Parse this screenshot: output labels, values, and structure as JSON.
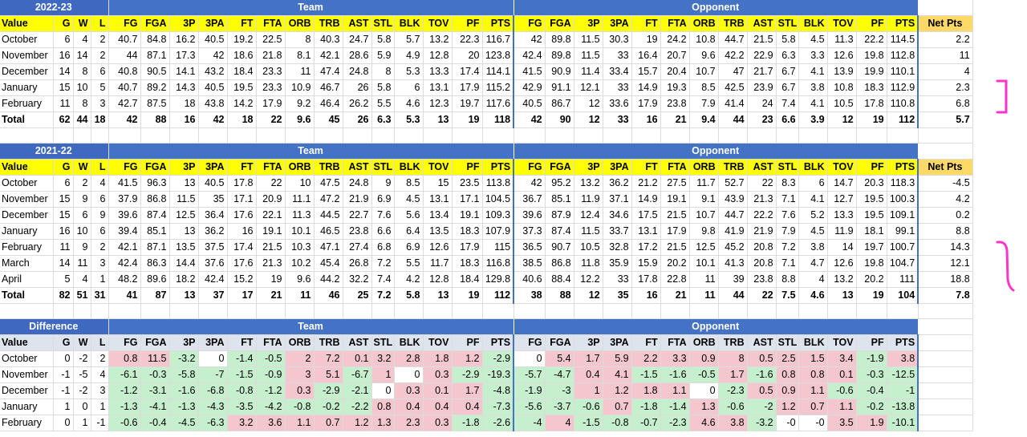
{
  "sections": [
    {
      "title": "2022-23",
      "team_band": "Team",
      "opp_band": "Opponent",
      "headers": [
        "Value",
        "G",
        "W",
        "L",
        "FG",
        "FGA",
        "3P",
        "3PA",
        "FT",
        "FTA",
        "ORB",
        "TRB",
        "AST",
        "STL",
        "BLK",
        "TOV",
        "PF",
        "PTS",
        "FG",
        "FGA",
        "3P",
        "3PA",
        "FT",
        "FTA",
        "ORB",
        "TRB",
        "AST",
        "STL",
        "BLK",
        "TOV",
        "PF",
        "PTS"
      ],
      "net_header": "Net Pts",
      "rows": [
        [
          "October",
          "6",
          "4",
          "2",
          "40.7",
          "84.8",
          "16.2",
          "40.5",
          "19.2",
          "22.5",
          "8",
          "40.3",
          "24.7",
          "5.8",
          "5.7",
          "13.2",
          "22.3",
          "116.7",
          "42",
          "89.8",
          "11.5",
          "30.3",
          "19",
          "24.2",
          "10.8",
          "44.7",
          "21.5",
          "5.8",
          "4.5",
          "11.3",
          "22.2",
          "114.5",
          "2.2"
        ],
        [
          "November",
          "16",
          "14",
          "2",
          "44",
          "87.1",
          "17.3",
          "42",
          "18.6",
          "21.8",
          "8.1",
          "42.1",
          "28.6",
          "5.9",
          "4.9",
          "12.8",
          "20",
          "123.8",
          "42.4",
          "89.8",
          "11.5",
          "33",
          "16.4",
          "20.7",
          "9.6",
          "42.2",
          "22.9",
          "6.3",
          "3.3",
          "12.6",
          "19.8",
          "112.8",
          "11"
        ],
        [
          "December",
          "14",
          "8",
          "6",
          "40.8",
          "90.5",
          "14.1",
          "43.2",
          "18.4",
          "23.3",
          "11",
          "47.4",
          "24.8",
          "8",
          "5.3",
          "13.3",
          "17.4",
          "114.1",
          "41.5",
          "90.9",
          "11.4",
          "33.4",
          "15.7",
          "20.4",
          "10.7",
          "47",
          "21.7",
          "6.7",
          "4.1",
          "13.9",
          "19.9",
          "110.1",
          "4"
        ],
        [
          "January",
          "15",
          "10",
          "5",
          "40.7",
          "89.2",
          "14.3",
          "40.5",
          "19.5",
          "23.3",
          "10.9",
          "46.7",
          "26",
          "5.8",
          "6",
          "13.1",
          "17.9",
          "115.2",
          "42.9",
          "91.1",
          "12.1",
          "33",
          "14.9",
          "19.3",
          "8.5",
          "42.5",
          "23.9",
          "6.7",
          "3.8",
          "10.8",
          "18.3",
          "112.9",
          "2.3"
        ],
        [
          "February",
          "11",
          "8",
          "3",
          "42.7",
          "87.5",
          "18",
          "43.8",
          "14.2",
          "17.9",
          "9.2",
          "46.4",
          "26.2",
          "5.5",
          "4.6",
          "12.3",
          "19.7",
          "117.6",
          "40.5",
          "86.7",
          "12",
          "33.6",
          "17.9",
          "23.8",
          "7.9",
          "41.4",
          "24",
          "7.4",
          "4.1",
          "10.5",
          "17.8",
          "110.8",
          "6.8"
        ],
        [
          "Total",
          "62",
          "44",
          "18",
          "42",
          "88",
          "16",
          "42",
          "18",
          "22",
          "9.6",
          "45",
          "26",
          "6.3",
          "5.3",
          "13",
          "19",
          "118",
          "42",
          "90",
          "12",
          "33",
          "16",
          "21",
          "9.4",
          "44",
          "23",
          "6.6",
          "3.9",
          "12",
          "19",
          "112",
          "5.7"
        ]
      ]
    },
    {
      "title": "2021-22",
      "team_band": "Team",
      "opp_band": "Opponent",
      "headers": [
        "Value",
        "G",
        "W",
        "L",
        "FG",
        "FGA",
        "3P",
        "3PA",
        "FT",
        "FTA",
        "ORB",
        "TRB",
        "AST",
        "STL",
        "BLK",
        "TOV",
        "PF",
        "PTS",
        "FG",
        "FGA",
        "3P",
        "3PA",
        "FT",
        "FTA",
        "ORB",
        "TRB",
        "AST",
        "STL",
        "BLK",
        "TOV",
        "PF",
        "PTS"
      ],
      "net_header": "Net Pts",
      "rows": [
        [
          "October",
          "6",
          "2",
          "4",
          "41.5",
          "96.3",
          "13",
          "40.5",
          "17.8",
          "22",
          "10",
          "47.5",
          "24.8",
          "9",
          "8.5",
          "15",
          "23.5",
          "113.8",
          "42",
          "95.2",
          "13.2",
          "36.2",
          "21.2",
          "27.5",
          "11.7",
          "52.7",
          "22",
          "8.3",
          "6",
          "14.7",
          "20.3",
          "118.3",
          "-4.5"
        ],
        [
          "November",
          "15",
          "9",
          "6",
          "37.9",
          "86.8",
          "11.5",
          "35",
          "17.1",
          "20.9",
          "11.1",
          "47.2",
          "21.9",
          "6.9",
          "4.5",
          "13.1",
          "17.1",
          "104.5",
          "36.7",
          "85.1",
          "11.9",
          "37.1",
          "14.9",
          "19.1",
          "9.1",
          "43.9",
          "21.3",
          "7.1",
          "4.1",
          "12.7",
          "19.5",
          "100.3",
          "4.2"
        ],
        [
          "December",
          "15",
          "6",
          "9",
          "39.6",
          "87.4",
          "12.5",
          "36.4",
          "17.6",
          "22.1",
          "11.3",
          "44.5",
          "22.7",
          "7.6",
          "5.6",
          "13.4",
          "19.1",
          "109.3",
          "39.6",
          "87.9",
          "12.4",
          "34.6",
          "17.5",
          "21.5",
          "10.7",
          "44.7",
          "22.2",
          "7.6",
          "5.2",
          "13.3",
          "19.5",
          "109.1",
          "0.2"
        ],
        [
          "January",
          "16",
          "10",
          "6",
          "39.4",
          "85.1",
          "13",
          "36.2",
          "16",
          "19.1",
          "10.1",
          "46.5",
          "23.8",
          "6.6",
          "6.4",
          "13.5",
          "18.3",
          "107.9",
          "37.3",
          "87.4",
          "11.5",
          "33.7",
          "13.1",
          "17.9",
          "9.8",
          "41.9",
          "21.9",
          "7.9",
          "4.5",
          "11.9",
          "18.1",
          "99.1",
          "8.8"
        ],
        [
          "February",
          "11",
          "9",
          "2",
          "42.1",
          "87.1",
          "13.5",
          "37.5",
          "17.4",
          "21.5",
          "10.3",
          "47.1",
          "27.4",
          "6.8",
          "6.9",
          "12.6",
          "17.9",
          "115",
          "36.5",
          "90.7",
          "10.5",
          "32.8",
          "17.2",
          "21.5",
          "12.5",
          "45.2",
          "20.8",
          "7.2",
          "3.8",
          "14",
          "19.7",
          "100.7",
          "14.3"
        ],
        [
          "March",
          "14",
          "11",
          "3",
          "42.4",
          "86.3",
          "14.4",
          "37.6",
          "17.6",
          "21.3",
          "10.2",
          "45.4",
          "26.8",
          "7.2",
          "5.5",
          "11.7",
          "18.3",
          "116.8",
          "38.5",
          "86.8",
          "11.8",
          "35.9",
          "15.9",
          "20.2",
          "10.1",
          "41.3",
          "20.8",
          "7.1",
          "4.7",
          "12.6",
          "19.8",
          "104.7",
          "12.1"
        ],
        [
          "April",
          "5",
          "4",
          "1",
          "48.2",
          "89.6",
          "18.2",
          "42.4",
          "15.2",
          "19",
          "9.6",
          "44.2",
          "32.2",
          "7.4",
          "4.2",
          "12.8",
          "18.4",
          "129.8",
          "40.6",
          "88.4",
          "12.2",
          "33",
          "17.8",
          "22.8",
          "11",
          "39",
          "23.8",
          "8.8",
          "4",
          "13.2",
          "20.2",
          "111",
          "18.8"
        ],
        [
          "Total",
          "82",
          "51",
          "31",
          "41",
          "87",
          "13",
          "37",
          "17",
          "21",
          "11",
          "46",
          "25",
          "7.2",
          "5.8",
          "13",
          "19",
          "112",
          "38",
          "88",
          "12",
          "35",
          "16",
          "21",
          "11",
          "44",
          "22",
          "7.5",
          "4.6",
          "13",
          "19",
          "104",
          "7.8"
        ]
      ]
    },
    {
      "title": "Difference",
      "team_band": "Team",
      "opp_band": "Opponent",
      "headers": [
        "Value",
        "G",
        "W",
        "L",
        "FG",
        "FGA",
        "3P",
        "3PA",
        "FT",
        "FTA",
        "ORB",
        "TRB",
        "AST",
        "STL",
        "BLK",
        "TOV",
        "PF",
        "PTS",
        "FG",
        "FGA",
        "3P",
        "3PA",
        "FT",
        "FTA",
        "ORB",
        "TRB",
        "AST",
        "STL",
        "BLK",
        "TOV",
        "PF",
        "PTS"
      ],
      "rows": [
        [
          "October",
          "0",
          "-2",
          "2",
          "0.8",
          "11.5",
          "-3.2",
          "0",
          "-1.4",
          "-0.5",
          "2",
          "7.2",
          "0.1",
          "3.2",
          "2.8",
          "1.8",
          "1.2",
          "-2.9",
          "0",
          "5.4",
          "1.7",
          "5.9",
          "2.2",
          "3.3",
          "0.9",
          "8",
          "0.5",
          "2.5",
          "1.5",
          "3.4",
          "-1.9",
          "3.8"
        ],
        [
          "November",
          "-1",
          "-5",
          "4",
          "-6.1",
          "-0.3",
          "-5.8",
          "-7",
          "-1.5",
          "-0.9",
          "3",
          "5.1",
          "-6.7",
          "1",
          "0",
          "0.3",
          "-2.9",
          "-19.3",
          "-5.7",
          "-4.7",
          "0.4",
          "4.1",
          "-1.5",
          "-1.6",
          "-0.5",
          "1.7",
          "-1.6",
          "0.8",
          "0.8",
          "0.1",
          "-0.3",
          "-12.5"
        ],
        [
          "December",
          "-1",
          "-2",
          "3",
          "-1.2",
          "-3.1",
          "-1.6",
          "-6.8",
          "-0.8",
          "-1.2",
          "0.3",
          "-2.9",
          "-2.1",
          "0",
          "0.3",
          "0.1",
          "1.7",
          "-4.8",
          "-1.9",
          "-3",
          "1",
          "1.2",
          "1.8",
          "1.1",
          "0",
          "-2.3",
          "0.5",
          "0.9",
          "1.1",
          "-0.6",
          "-0.4",
          "-1"
        ],
        [
          "January",
          "1",
          "0",
          "1",
          "-1.3",
          "-4.1",
          "-1.3",
          "-4.3",
          "-3.5",
          "-4.2",
          "-0.8",
          "-0.2",
          "-2.2",
          "0.8",
          "0.4",
          "0.4",
          "0.4",
          "-7.3",
          "-5.6",
          "-3.7",
          "-0.6",
          "0.7",
          "-1.8",
          "-1.4",
          "1.3",
          "-0.6",
          "-2",
          "1.2",
          "0.7",
          "1.1",
          "-0.2",
          "-13.8"
        ],
        [
          "February",
          "0",
          "1",
          "-1",
          "-0.6",
          "-0.4",
          "-4.5",
          "-6.3",
          "3.2",
          "3.6",
          "1.1",
          "0.7",
          "1.2",
          "1.3",
          "2.3",
          "0.3",
          "-1.8",
          "-2.6",
          "-4",
          "4",
          "-1.5",
          "-0.8",
          "-0.7",
          "-2.3",
          "4.6",
          "3.8",
          "-3.2",
          "-0",
          "-0",
          "3.5",
          "1.9",
          "-10.1"
        ]
      ]
    }
  ],
  "colors": {
    "band_blue": "#4472c4",
    "header_yellow": "#ffff00",
    "net_header_gold": "#ffd966",
    "diff_header_gray": "#dde4ee",
    "positive_red": "#f4c7ce",
    "negative_green": "#c6efce",
    "bracket_magenta": "#ff33cc"
  }
}
